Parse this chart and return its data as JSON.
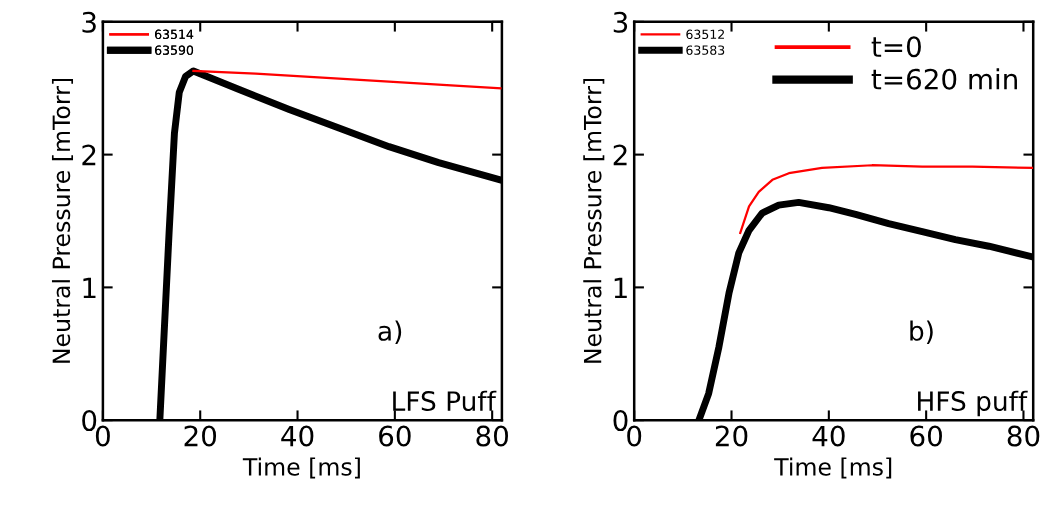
{
  "chart_data": [
    {
      "type": "line",
      "xlabel": "Time [ms]",
      "ylabel": "Neutral Pressure [mTorr]",
      "xlim": [
        0,
        82
      ],
      "ylim": [
        0,
        3
      ],
      "xticks": [
        0,
        20,
        40,
        60,
        80
      ],
      "yticks": [
        0,
        1,
        2,
        3
      ],
      "grid": false,
      "legend": "top left",
      "marker": "none",
      "line_style": "solid",
      "annotations": [
        "a)",
        "LFS Puff"
      ],
      "series": [
        {
          "name": "63514",
          "color": "#ff0000",
          "x": [
            18.6,
            31.4,
            45.1,
            58.8,
            72.4,
            81.7
          ],
          "values": [
            2.63,
            2.61,
            2.58,
            2.55,
            2.52,
            2.5
          ]
        },
        {
          "name": "63590",
          "color": "#000000",
          "x": [
            11.7,
            13.6,
            14.7,
            15.7,
            17.0,
            18.6,
            28,
            38.3,
            48.5,
            58.8,
            69,
            81.7
          ],
          "values": [
            0,
            1.41,
            2.16,
            2.47,
            2.59,
            2.63,
            2.49,
            2.34,
            2.2,
            2.06,
            1.94,
            1.81
          ]
        }
      ]
    },
    {
      "type": "line",
      "xlabel": "Time [ms]",
      "ylabel": "Neutral Pressure [mTorr]",
      "xlim": [
        0,
        82
      ],
      "ylim": [
        0,
        3
      ],
      "xticks": [
        0,
        20,
        40,
        60,
        80
      ],
      "yticks": [
        0,
        1,
        2,
        3
      ],
      "grid": false,
      "legend": "top left",
      "marker": "none",
      "line_style": "solid",
      "annotations": [
        "b)",
        "HFS puff",
        "t=0",
        "t=620 min"
      ],
      "series": [
        {
          "name": "63512",
          "color": "#ff0000",
          "x": [
            21.8,
            23.6,
            25.6,
            28.4,
            31.8,
            38.6,
            48.9,
            59.2,
            69.5,
            81.8
          ],
          "values": [
            1.41,
            1.61,
            1.72,
            1.81,
            1.86,
            1.9,
            1.92,
            1.91,
            1.91,
            1.9
          ]
        },
        {
          "name": "63583",
          "color": "#000000",
          "x": [
            13.3,
            15.3,
            17.4,
            19.5,
            21.5,
            23.6,
            26.3,
            29.7,
            33.8,
            40,
            45.5,
            52.3,
            59.2,
            66,
            72.9,
            81.8
          ],
          "values": [
            0,
            0.2,
            0.55,
            0.96,
            1.26,
            1.43,
            1.56,
            1.62,
            1.64,
            1.6,
            1.55,
            1.48,
            1.42,
            1.36,
            1.31,
            1.23
          ]
        }
      ]
    }
  ]
}
